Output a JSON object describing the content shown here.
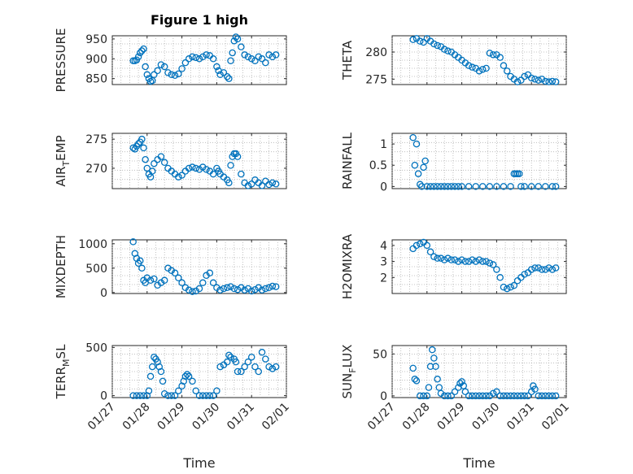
{
  "figure": {
    "title": "Figure 1 high"
  },
  "chart_data": [
    {
      "type": "scatter",
      "ylabel": "PRESSURE",
      "ylim": [
        835,
        958
      ],
      "yticks": [
        850,
        900,
        950
      ],
      "x": [
        "01/27.6",
        "01/27.65",
        "01/27.7",
        "01/27.75",
        "01/27.8",
        "01/27.85",
        "01/27.9",
        "01/27.95",
        "01/28.0",
        "01/28.05",
        "01/28.1",
        "01/28.15",
        "01/28.2",
        "01/28.3",
        "01/28.4",
        "01/28.5",
        "01/28.6",
        "01/28.7",
        "01/28.8",
        "01/28.9",
        "01/29.0",
        "01/29.1",
        "01/29.2",
        "01/29.3",
        "01/29.4",
        "01/29.5",
        "01/29.6",
        "01/29.7",
        "01/29.8",
        "01/29.9",
        "01/30.0",
        "01/30.05",
        "01/30.1",
        "01/30.2",
        "01/30.3",
        "01/30.35",
        "01/30.4",
        "01/30.45",
        "01/30.5",
        "01/30.55",
        "01/30.6",
        "01/30.7",
        "01/30.8",
        "01/30.9",
        "01/31.0",
        "01/31.1",
        "01/31.2",
        "01/31.3",
        "01/31.4",
        "01/31.5",
        "01/31.6",
        "01/31.7"
      ],
      "values": [
        895,
        895,
        897,
        905,
        915,
        920,
        925,
        880,
        860,
        850,
        843,
        845,
        860,
        870,
        885,
        880,
        865,
        860,
        858,
        862,
        875,
        890,
        900,
        905,
        903,
        900,
        905,
        910,
        908,
        900,
        880,
        870,
        860,
        865,
        855,
        850,
        895,
        915,
        945,
        955,
        950,
        930,
        910,
        905,
        900,
        895,
        905,
        900,
        890,
        910,
        905,
        910
      ]
    },
    {
      "type": "scatter",
      "ylabel": "THETA",
      "ylim": [
        274,
        283
      ],
      "yticks": [
        275,
        280
      ],
      "x": [
        "01/27.6",
        "01/27.7",
        "01/27.8",
        "01/27.9",
        "01/28.0",
        "01/28.1",
        "01/28.2",
        "01/28.3",
        "01/28.4",
        "01/28.5",
        "01/28.6",
        "01/28.7",
        "01/28.8",
        "01/28.9",
        "01/29.0",
        "01/29.1",
        "01/29.2",
        "01/29.3",
        "01/29.4",
        "01/29.5",
        "01/29.6",
        "01/29.7",
        "01/29.8",
        "01/29.9",
        "01/30.0",
        "01/30.1",
        "01/30.2",
        "01/30.3",
        "01/30.4",
        "01/30.5",
        "01/30.6",
        "01/30.7",
        "01/30.8",
        "01/30.9",
        "01/31.0",
        "01/31.1",
        "01/31.2",
        "01/31.3",
        "01/31.4",
        "01/31.5",
        "01/31.6",
        "01/31.7"
      ],
      "values": [
        282.3,
        282.5,
        282.0,
        281.8,
        282.5,
        282.0,
        281.5,
        281.2,
        281.0,
        280.5,
        280.2,
        280.0,
        279.5,
        279.0,
        278.5,
        278.0,
        277.5,
        277.2,
        277.0,
        276.5,
        276.8,
        277.0,
        279.8,
        279.5,
        279.5,
        279.0,
        277.5,
        276.5,
        275.5,
        275.0,
        274.5,
        274.8,
        275.5,
        275.8,
        275.2,
        275.0,
        274.8,
        275.0,
        274.6,
        274.5,
        274.6,
        274.5
      ]
    },
    {
      "type": "scatter",
      "ylabel": "AIR_TEMP",
      "ylim": [
        266.5,
        276
      ],
      "yticks": [
        270,
        275
      ],
      "x": [
        "01/27.6",
        "01/27.65",
        "01/27.7",
        "01/27.75",
        "01/27.8",
        "01/27.85",
        "01/27.9",
        "01/27.95",
        "01/28.0",
        "01/28.05",
        "01/28.1",
        "01/28.15",
        "01/28.2",
        "01/28.3",
        "01/28.4",
        "01/28.5",
        "01/28.6",
        "01/28.7",
        "01/28.8",
        "01/28.9",
        "01/29.0",
        "01/29.1",
        "01/29.2",
        "01/29.3",
        "01/29.4",
        "01/29.5",
        "01/29.6",
        "01/29.7",
        "01/29.8",
        "01/29.9",
        "01/30.0",
        "01/30.05",
        "01/30.1",
        "01/30.2",
        "01/30.3",
        "01/30.35",
        "01/30.4",
        "01/30.45",
        "01/30.5",
        "01/30.55",
        "01/30.6",
        "01/30.7",
        "01/30.8",
        "01/30.9",
        "01/31.0",
        "01/31.1",
        "01/31.2",
        "01/31.3",
        "01/31.4",
        "01/31.5",
        "01/31.6",
        "01/31.7"
      ],
      "values": [
        273.5,
        273.3,
        273.8,
        274.2,
        274.5,
        275.0,
        273.5,
        271.5,
        270.0,
        269.0,
        268.5,
        269.5,
        270.8,
        271.5,
        272.0,
        271.0,
        270.0,
        269.5,
        269.0,
        268.5,
        268.8,
        269.5,
        270.0,
        270.2,
        270.0,
        269.8,
        270.2,
        269.8,
        269.5,
        269.0,
        270.0,
        269.5,
        269.0,
        268.5,
        268.0,
        267.5,
        270.5,
        272.0,
        272.5,
        272.5,
        272.0,
        269.0,
        267.5,
        267.0,
        267.3,
        268.0,
        267.5,
        267.0,
        267.8,
        267.2,
        267.5,
        267.3
      ]
    },
    {
      "type": "scatter",
      "ylabel": "RAINFALL",
      "ylim": [
        -0.05,
        1.25
      ],
      "yticks": [
        0,
        0.5,
        1
      ],
      "x": [
        "01/27.6",
        "01/27.65",
        "01/27.7",
        "01/27.75",
        "01/27.8",
        "01/27.85",
        "01/27.9",
        "01/27.95",
        "01/28.0",
        "01/28.1",
        "01/28.2",
        "01/28.3",
        "01/28.4",
        "01/28.5",
        "01/28.6",
        "01/28.7",
        "01/28.8",
        "01/28.9",
        "01/29.0",
        "01/29.2",
        "01/29.4",
        "01/29.6",
        "01/29.8",
        "01/30.0",
        "01/30.2",
        "01/30.4",
        "01/30.5",
        "01/30.55",
        "01/30.6",
        "01/30.65",
        "01/30.7",
        "01/30.8",
        "01/31.0",
        "01/31.2",
        "01/31.4",
        "01/31.6",
        "01/31.7"
      ],
      "values": [
        1.15,
        0.5,
        1.0,
        0.3,
        0.05,
        0.0,
        0.45,
        0.6,
        0.0,
        0.0,
        0.0,
        0.0,
        0.0,
        0.0,
        0.0,
        0.0,
        0.0,
        0.0,
        0.0,
        0.0,
        0.0,
        0.0,
        0.0,
        0.0,
        0.0,
        0.0,
        0.3,
        0.3,
        0.3,
        0.3,
        0.0,
        0.0,
        0.0,
        0.0,
        0.0,
        0.0,
        0.0
      ]
    },
    {
      "type": "scatter",
      "ylabel": "MIXDEPTH",
      "ylim": [
        -20,
        1080
      ],
      "yticks": [
        0,
        500,
        1000
      ],
      "x": [
        "01/27.6",
        "01/27.65",
        "01/27.7",
        "01/27.75",
        "01/27.8",
        "01/27.85",
        "01/27.9",
        "01/27.95",
        "01/28.0",
        "01/28.1",
        "01/28.2",
        "01/28.3",
        "01/28.4",
        "01/28.5",
        "01/28.6",
        "01/28.7",
        "01/28.8",
        "01/28.9",
        "01/29.0",
        "01/29.1",
        "01/29.2",
        "01/29.3",
        "01/29.4",
        "01/29.5",
        "01/29.6",
        "01/29.7",
        "01/29.8",
        "01/29.9",
        "01/30.0",
        "01/30.1",
        "01/30.2",
        "01/30.3",
        "01/30.4",
        "01/30.5",
        "01/30.6",
        "01/30.7",
        "01/30.8",
        "01/30.9",
        "01/31.0",
        "01/31.1",
        "01/31.2",
        "01/31.3",
        "01/31.4",
        "01/31.5",
        "01/31.6",
        "01/31.7"
      ],
      "values": [
        1040,
        800,
        700,
        600,
        650,
        500,
        250,
        200,
        300,
        250,
        280,
        150,
        200,
        250,
        500,
        450,
        400,
        300,
        200,
        100,
        50,
        20,
        30,
        80,
        200,
        350,
        400,
        200,
        100,
        50,
        80,
        100,
        120,
        80,
        60,
        100,
        50,
        80,
        30,
        60,
        100,
        50,
        80,
        100,
        130,
        120
      ]
    },
    {
      "type": "scatter",
      "ylabel": "H2OMIXRA",
      "ylim": [
        1.0,
        4.35
      ],
      "yticks": [
        2,
        3,
        4
      ],
      "x": [
        "01/27.6",
        "01/27.7",
        "01/27.8",
        "01/27.9",
        "01/28.0",
        "01/28.1",
        "01/28.2",
        "01/28.3",
        "01/28.4",
        "01/28.5",
        "01/28.6",
        "01/28.7",
        "01/28.8",
        "01/28.9",
        "01/29.0",
        "01/29.1",
        "01/29.2",
        "01/29.3",
        "01/29.4",
        "01/29.5",
        "01/29.6",
        "01/29.7",
        "01/29.8",
        "01/29.9",
        "01/30.0",
        "01/30.1",
        "01/30.2",
        "01/30.3",
        "01/30.4",
        "01/30.5",
        "01/30.6",
        "01/30.7",
        "01/30.8",
        "01/30.9",
        "01/31.0",
        "01/31.1",
        "01/31.2",
        "01/31.3",
        "01/31.4",
        "01/31.5",
        "01/31.6",
        "01/31.7"
      ],
      "values": [
        3.8,
        4.0,
        4.1,
        4.2,
        4.0,
        3.6,
        3.3,
        3.2,
        3.2,
        3.1,
        3.2,
        3.1,
        3.1,
        3.0,
        3.1,
        3.0,
        3.0,
        3.1,
        3.0,
        3.1,
        3.0,
        3.0,
        2.9,
        2.8,
        2.5,
        2.0,
        1.4,
        1.3,
        1.4,
        1.5,
        1.8,
        2.0,
        2.2,
        2.3,
        2.5,
        2.6,
        2.6,
        2.5,
        2.5,
        2.6,
        2.5,
        2.6
      ]
    },
    {
      "type": "scatter",
      "ylabel": "TERR_MSL",
      "ylim": [
        -20,
        520
      ],
      "yticks": [
        0,
        500
      ],
      "x": [
        "01/27.6",
        "01/27.7",
        "01/27.8",
        "01/27.9",
        "01/28.0",
        "01/28.05",
        "01/28.1",
        "01/28.15",
        "01/28.2",
        "01/28.25",
        "01/28.3",
        "01/28.35",
        "01/28.4",
        "01/28.45",
        "01/28.5",
        "01/28.6",
        "01/28.7",
        "01/28.8",
        "01/28.9",
        "01/29.0",
        "01/29.05",
        "01/29.1",
        "01/29.15",
        "01/29.2",
        "01/29.3",
        "01/29.4",
        "01/29.5",
        "01/29.6",
        "01/29.7",
        "01/29.8",
        "01/29.9",
        "01/30.0",
        "01/30.1",
        "01/30.2",
        "01/30.3",
        "01/30.35",
        "01/30.4",
        "01/30.5",
        "01/30.55",
        "01/30.6",
        "01/30.7",
        "01/30.8",
        "01/30.9",
        "01/31.0",
        "01/31.1",
        "01/31.2",
        "01/31.3",
        "01/31.4",
        "01/31.5",
        "01/31.6",
        "01/31.7"
      ],
      "values": [
        0,
        0,
        0,
        0,
        0,
        50,
        200,
        300,
        400,
        380,
        350,
        300,
        250,
        150,
        20,
        0,
        0,
        0,
        50,
        100,
        150,
        200,
        220,
        200,
        150,
        50,
        0,
        0,
        0,
        0,
        0,
        50,
        300,
        320,
        350,
        420,
        400,
        380,
        350,
        250,
        250,
        300,
        350,
        400,
        300,
        250,
        450,
        380,
        300,
        280,
        300
      ]
    },
    {
      "type": "scatter",
      "ylabel": "SUN_FLUX",
      "ylim": [
        -2,
        60
      ],
      "yticks": [
        0,
        50
      ],
      "x": [
        "01/27.6",
        "01/27.65",
        "01/27.7",
        "01/27.8",
        "01/27.9",
        "01/28.0",
        "01/28.05",
        "01/28.1",
        "01/28.15",
        "01/28.2",
        "01/28.25",
        "01/28.3",
        "01/28.35",
        "01/28.4",
        "01/28.5",
        "01/28.6",
        "01/28.7",
        "01/28.8",
        "01/28.9",
        "01/28.95",
        "01/29.0",
        "01/29.05",
        "01/29.1",
        "01/29.2",
        "01/29.3",
        "01/29.4",
        "01/29.5",
        "01/29.6",
        "01/29.7",
        "01/29.8",
        "01/29.9",
        "01/30.0",
        "01/30.1",
        "01/30.2",
        "01/30.3",
        "01/30.4",
        "01/30.5",
        "01/30.6",
        "01/30.7",
        "01/30.8",
        "01/30.9",
        "01/31.0",
        "01/31.05",
        "01/31.1",
        "01/31.2",
        "01/31.3",
        "01/31.4",
        "01/31.5",
        "01/31.6",
        "01/31.7"
      ],
      "values": [
        33,
        20,
        18,
        0,
        0,
        0,
        10,
        35,
        55,
        45,
        35,
        20,
        10,
        3,
        0,
        0,
        0,
        5,
        10,
        15,
        17,
        12,
        5,
        0,
        0,
        0,
        0,
        0,
        0,
        0,
        3,
        5,
        0,
        0,
        0,
        0,
        0,
        0,
        0,
        0,
        0,
        5,
        12,
        8,
        0,
        0,
        0,
        0,
        0,
        0
      ]
    }
  ],
  "axes_labels": {
    "xticks": [
      "01/27",
      "01/28",
      "01/29",
      "01/30",
      "01/31",
      "02/01"
    ],
    "xlabel": "Time"
  }
}
